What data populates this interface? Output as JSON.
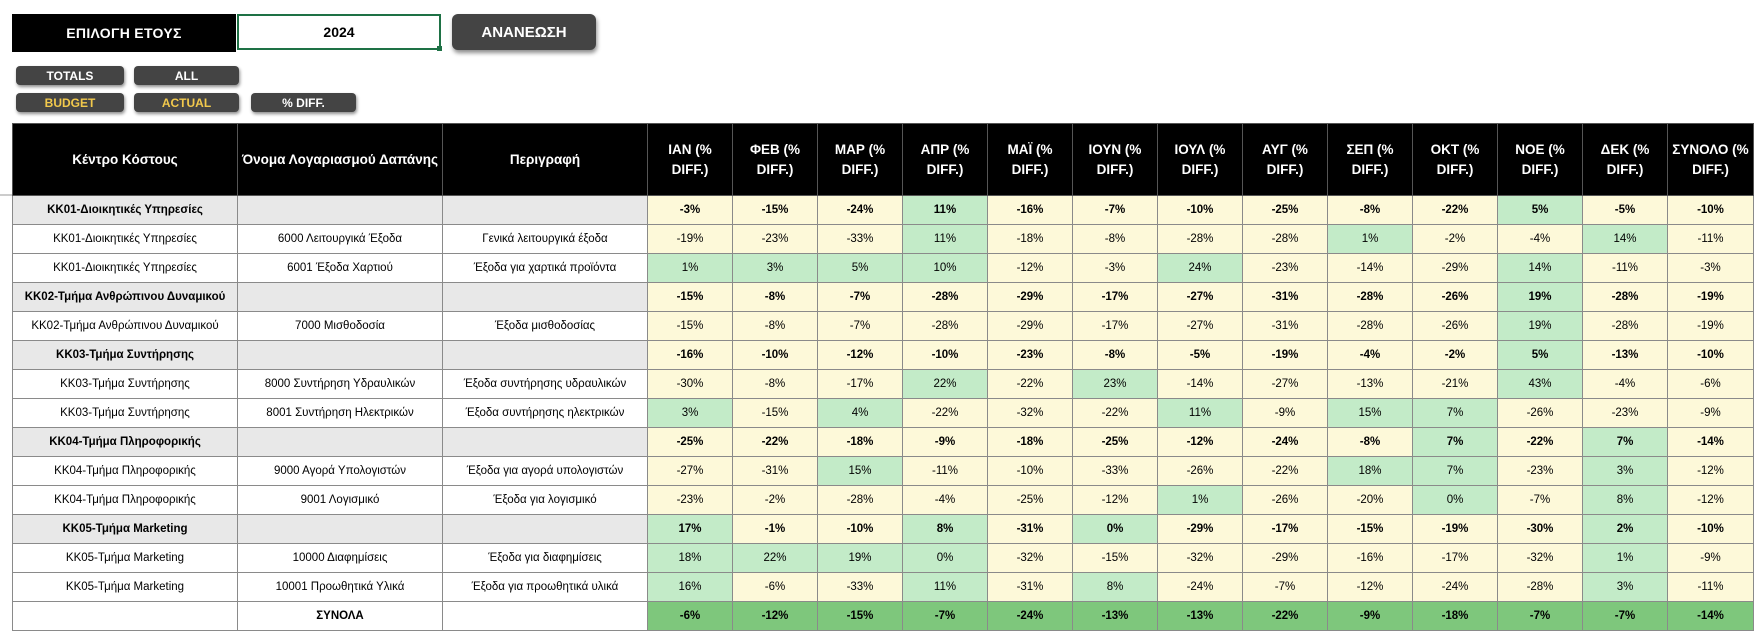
{
  "controls": {
    "year_label": "ΕΠΙΛΟΓΗ ΕΤΟΥΣ",
    "year_value": "2024",
    "refresh_label": "ΑΝΑΝΕΩΣΗ",
    "totals_label": "TOTALS",
    "all_label": "ALL",
    "budget_label": "BUDGET",
    "actual_label": "ACTUAL",
    "pct_diff_label": "% DIFF."
  },
  "colors": {
    "header_bg": "#000000",
    "group_bg": "#e8e8e8",
    "negative_fill": "#fdf9d9",
    "positive_fill": "#c3ebc8",
    "total_fill": "#8dcf8a",
    "button_bg": "#444444",
    "button_yellow": "#f2c94c",
    "input_border": "#1e7145"
  },
  "table": {
    "headers": [
      "Κέντρο Κόστους",
      "Όνομα Λογαριασμού Δαπάνης",
      "Περιγραφή",
      "ΙΑΝ (% DIFF.)",
      "ΦΕΒ (% DIFF.)",
      "ΜΑΡ (% DIFF.)",
      "ΑΠΡ (% DIFF.)",
      "ΜΑΪ (% DIFF.)",
      "ΙΟΥΝ (% DIFF.)",
      "ΙΟΥΛ (% DIFF.)",
      "ΑΥΓ (% DIFF.)",
      "ΣΕΠ (% DIFF.)",
      "ΟΚΤ (% DIFF.)",
      "ΝΟΕ (% DIFF.)",
      "ΔΕΚ (% DIFF.)",
      "ΣΥΝΟΛΟ (% DIFF.)"
    ],
    "rows": [
      {
        "type": "group",
        "center": "ΚΚ01-Διοικητικές Υπηρεσίες",
        "account": "",
        "desc": "",
        "values": [
          "-3%",
          "-15%",
          "-24%",
          "11%",
          "-16%",
          "-7%",
          "-10%",
          "-25%",
          "-8%",
          "-22%",
          "5%",
          "-5%",
          "-10%"
        ]
      },
      {
        "type": "detail",
        "center": "ΚΚ01-Διοικητικές Υπηρεσίες",
        "account": "6000 Λειτουργικά Έξοδα",
        "desc": "Γενικά λειτουργικά έξοδα",
        "values": [
          "-19%",
          "-23%",
          "-33%",
          "11%",
          "-18%",
          "-8%",
          "-28%",
          "-28%",
          "1%",
          "-2%",
          "-4%",
          "14%",
          "-11%"
        ]
      },
      {
        "type": "detail",
        "center": "ΚΚ01-Διοικητικές Υπηρεσίες",
        "account": "6001 Έξοδα Χαρτιού",
        "desc": "Έξοδα για χαρτικά προϊόντα",
        "values": [
          "1%",
          "3%",
          "5%",
          "10%",
          "-12%",
          "-3%",
          "24%",
          "-23%",
          "-14%",
          "-29%",
          "14%",
          "-11%",
          "-3%"
        ]
      },
      {
        "type": "group",
        "center": "ΚΚ02-Τμήμα Ανθρώπινου Δυναμικού",
        "account": "",
        "desc": "",
        "values": [
          "-15%",
          "-8%",
          "-7%",
          "-28%",
          "-29%",
          "-17%",
          "-27%",
          "-31%",
          "-28%",
          "-26%",
          "19%",
          "-28%",
          "-19%"
        ]
      },
      {
        "type": "detail",
        "center": "ΚΚ02-Τμήμα Ανθρώπινου Δυναμικού",
        "account": "7000 Μισθοδοσία",
        "desc": "Έξοδα μισθοδοσίας",
        "values": [
          "-15%",
          "-8%",
          "-7%",
          "-28%",
          "-29%",
          "-17%",
          "-27%",
          "-31%",
          "-28%",
          "-26%",
          "19%",
          "-28%",
          "-19%"
        ]
      },
      {
        "type": "group",
        "center": "ΚΚ03-Τμήμα Συντήρησης",
        "account": "",
        "desc": "",
        "values": [
          "-16%",
          "-10%",
          "-12%",
          "-10%",
          "-23%",
          "-8%",
          "-5%",
          "-19%",
          "-4%",
          "-2%",
          "5%",
          "-13%",
          "-10%"
        ]
      },
      {
        "type": "detail",
        "center": "ΚΚ03-Τμήμα Συντήρησης",
        "account": "8000 Συντήρηση Υδραυλικών",
        "desc": "Έξοδα συντήρησης υδραυλικών",
        "values": [
          "-30%",
          "-8%",
          "-17%",
          "22%",
          "-22%",
          "23%",
          "-14%",
          "-27%",
          "-13%",
          "-21%",
          "43%",
          "-4%",
          "-6%"
        ]
      },
      {
        "type": "detail",
        "center": "ΚΚ03-Τμήμα Συντήρησης",
        "account": "8001 Συντήρηση Ηλεκτρικών",
        "desc": "Έξοδα συντήρησης ηλεκτρικών",
        "values": [
          "3%",
          "-15%",
          "4%",
          "-22%",
          "-32%",
          "-22%",
          "11%",
          "-9%",
          "15%",
          "7%",
          "-26%",
          "-23%",
          "-9%"
        ]
      },
      {
        "type": "group",
        "center": "ΚΚ04-Τμήμα Πληροφορικής",
        "account": "",
        "desc": "",
        "values": [
          "-25%",
          "-22%",
          "-18%",
          "-9%",
          "-18%",
          "-25%",
          "-12%",
          "-24%",
          "-8%",
          "7%",
          "-22%",
          "7%",
          "-14%"
        ]
      },
      {
        "type": "detail",
        "center": "ΚΚ04-Τμήμα Πληροφορικής",
        "account": "9000 Αγορά Υπολογιστών",
        "desc": "Έξοδα για αγορά υπολογιστών",
        "values": [
          "-27%",
          "-31%",
          "15%",
          "-11%",
          "-10%",
          "-33%",
          "-26%",
          "-22%",
          "18%",
          "7%",
          "-23%",
          "3%",
          "-12%"
        ]
      },
      {
        "type": "detail",
        "center": "ΚΚ04-Τμήμα Πληροφορικής",
        "account": "9001 Λογισμικό",
        "desc": "Έξοδα για λογισμικό",
        "values": [
          "-23%",
          "-2%",
          "-28%",
          "-4%",
          "-25%",
          "-12%",
          "1%",
          "-26%",
          "-20%",
          "0%",
          "-7%",
          "8%",
          "-12%"
        ]
      },
      {
        "type": "group",
        "center": "ΚΚ05-Τμήμα Marketing",
        "account": "",
        "desc": "",
        "values": [
          "17%",
          "-1%",
          "-10%",
          "8%",
          "-31%",
          "0%",
          "-29%",
          "-17%",
          "-15%",
          "-19%",
          "-30%",
          "2%",
          "-10%"
        ]
      },
      {
        "type": "detail",
        "center": "ΚΚ05-Τμήμα Marketing",
        "account": "10000 Διαφημίσεις",
        "desc": "Έξοδα για διαφημίσεις",
        "values": [
          "18%",
          "22%",
          "19%",
          "0%",
          "-32%",
          "-15%",
          "-32%",
          "-29%",
          "-16%",
          "-17%",
          "-32%",
          "1%",
          "-9%"
        ]
      },
      {
        "type": "detail",
        "center": "ΚΚ05-Τμήμα Marketing",
        "account": "10001 Προωθητικά Υλικά",
        "desc": "Έξοδα για προωθητικά υλικά",
        "values": [
          "16%",
          "-6%",
          "-33%",
          "11%",
          "-31%",
          "8%",
          "-24%",
          "-7%",
          "-12%",
          "-24%",
          "-28%",
          "3%",
          "-11%"
        ]
      },
      {
        "type": "total",
        "center": "",
        "account": "ΣΥΝΟΛΑ",
        "desc": "",
        "values": [
          "-6%",
          "-12%",
          "-15%",
          "-7%",
          "-24%",
          "-13%",
          "-13%",
          "-22%",
          "-9%",
          "-18%",
          "-7%",
          "-7%",
          "-14%"
        ]
      }
    ]
  }
}
